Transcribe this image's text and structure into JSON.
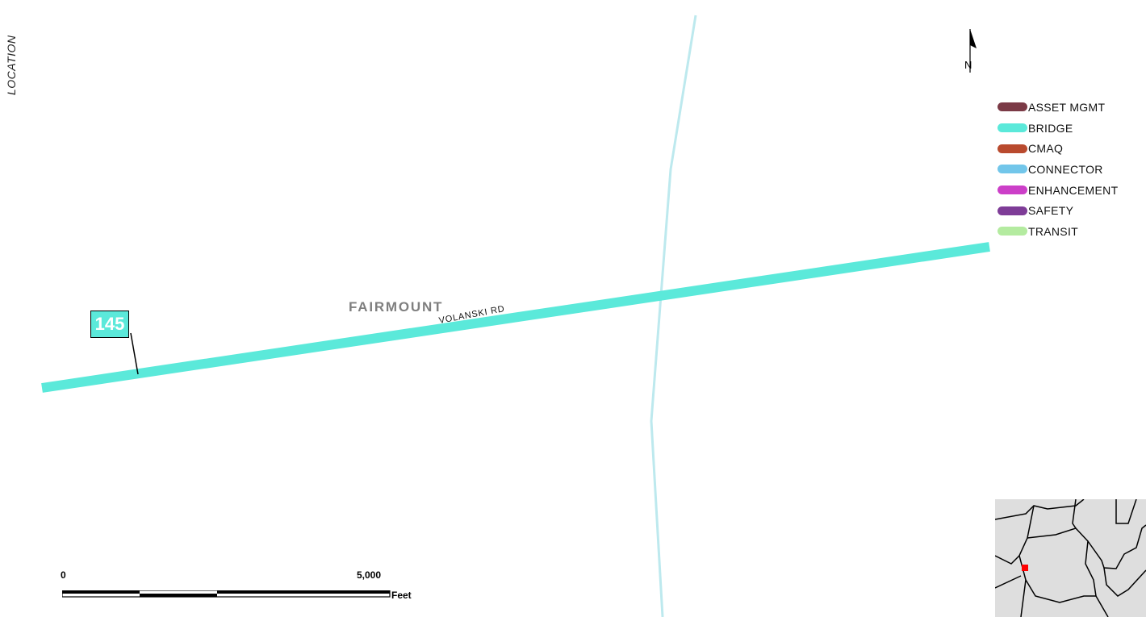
{
  "side_label": "LOCATION",
  "north_arrow": {
    "letter": "N"
  },
  "legend": {
    "items": [
      {
        "label": "ASSET MGMT",
        "color": "#7b3a46"
      },
      {
        "label": "BRIDGE",
        "color": "#5be9da"
      },
      {
        "label": "CMAQ",
        "color": "#b94a2e"
      },
      {
        "label": "CONNECTOR",
        "color": "#72c6ea"
      },
      {
        "label": "ENHANCEMENT",
        "color": "#cc3fc8"
      },
      {
        "label": "SAFETY",
        "color": "#7e3c97"
      },
      {
        "label": "TRANSIT",
        "color": "#b4eba0"
      }
    ]
  },
  "map": {
    "place_label": "FAIRMOUNT",
    "road_label": "VOLANSKI RD",
    "project_id": "145",
    "project_road_color": "#5be9da",
    "cross_road_color": "#bde9ee"
  },
  "scale_bar": {
    "zero": "0",
    "max": "5,000",
    "unit": "Feet"
  },
  "inset": {
    "marker_color": "#ff0000",
    "fill_color": "#dedede"
  }
}
